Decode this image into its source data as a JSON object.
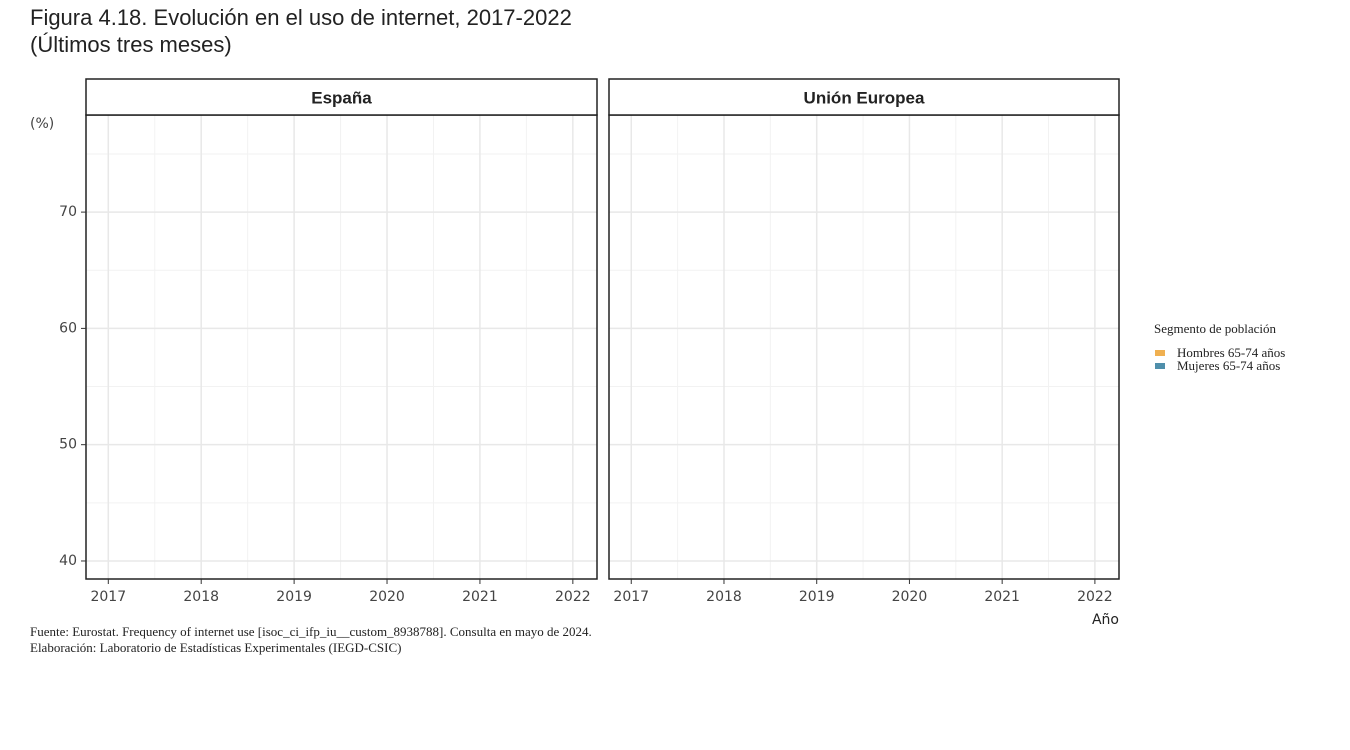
{
  "chart_data": {
    "type": "line",
    "title": "Figura 4.18. Evolución en el uso de internet, 2017-2022",
    "subtitle": "(Últimos tres meses)",
    "facets": [
      "España",
      "Unión Europea"
    ],
    "x": [
      2017,
      2018,
      2019,
      2020,
      2021,
      2022
    ],
    "xlim": [
      2016.76,
      2022.26
    ],
    "xticks": [
      2017,
      2018,
      2019,
      2020,
      2021,
      2022
    ],
    "ylim": [
      38.45,
      78.35
    ],
    "yticks": [
      40,
      50,
      60,
      70
    ],
    "y_label": "(%)",
    "x_label": "Año",
    "grid": true,
    "legend_title": "Segmento de población",
    "series": [
      {
        "name": "Hombres 65-74 años",
        "color": "#f0b050"
      },
      {
        "name": "Mujeres 65-74 años",
        "color": "#4f8fab"
      }
    ],
    "notes": [
      "Fuente: Eurostat. Frequency of internet use [isoc_ci_ifp_iu__custom_8938788]. Consulta en mayo de 2024.",
      "Elaboración: Laboratorio de Estadísticas Experimentales (IEGD-CSIC)"
    ]
  }
}
